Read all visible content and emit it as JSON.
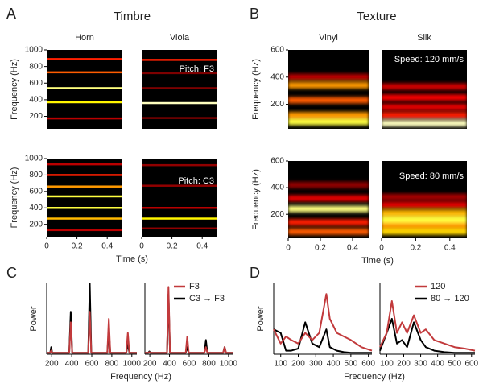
{
  "figure": {
    "panels": [
      "A",
      "B",
      "C",
      "D"
    ],
    "headings": [
      "Timbre",
      "Texture"
    ]
  },
  "chart_data": [
    {
      "type": "spectrogram",
      "title": "Horn",
      "ylabel": "Frequency (Hz)",
      "xlim": [
        0,
        0.5
      ],
      "ylim": [
        50,
        1000
      ],
      "yticks": [
        200,
        400,
        600,
        800,
        1000
      ],
      "bands": [
        175,
        370,
        540,
        730,
        890
      ],
      "intensities": [
        0.3,
        0.85,
        0.95,
        0.6,
        0.5
      ]
    },
    {
      "type": "spectrogram",
      "title": "Viola",
      "annotation": "Pitch: F3",
      "xlim": [
        0,
        0.5
      ],
      "ylim": [
        50,
        1000
      ],
      "bands": [
        180,
        360,
        540,
        720,
        880
      ],
      "intensities": [
        0.15,
        1.0,
        0.15,
        0.15,
        0.5
      ]
    },
    {
      "type": "spectrogram",
      "ylabel": "Frequency (Hz)",
      "xlabel": "Time (s)",
      "xlim": [
        0,
        0.5
      ],
      "ylim": [
        50,
        1000
      ],
      "xticks": [
        0,
        0.2,
        0.4
      ],
      "yticks": [
        200,
        400,
        600,
        800,
        1000
      ],
      "bands": [
        130,
        270,
        400,
        540,
        660,
        800,
        930
      ],
      "intensities": [
        0.3,
        0.75,
        0.9,
        0.9,
        0.7,
        0.5,
        0.3
      ]
    },
    {
      "type": "spectrogram",
      "annotation": "Pitch: C3",
      "xlim": [
        0,
        0.5
      ],
      "ylim": [
        50,
        1000
      ],
      "xticks": [
        0,
        0.2,
        0.4
      ],
      "bands": [
        150,
        270,
        400,
        670,
        920
      ],
      "intensities": [
        0.2,
        0.85,
        0.3,
        0.2,
        0.2
      ]
    },
    {
      "type": "spectrogram",
      "title": "Vinyl",
      "ylabel": "Frequency (Hz)",
      "xlim": [
        0,
        0.5
      ],
      "ylim": [
        20,
        600
      ],
      "yticks": [
        200,
        400,
        600
      ],
      "bands": [
        70,
        120,
        230,
        340,
        400
      ],
      "intensities": [
        0.9,
        0.7,
        0.6,
        0.7,
        0.3
      ]
    },
    {
      "type": "spectrogram",
      "title": "Silk",
      "annotation": "Speed: 120 mm/s",
      "xlim": [
        0,
        0.5
      ],
      "ylim": [
        20,
        600
      ],
      "bands": [
        60,
        120,
        180,
        250,
        330
      ],
      "intensities": [
        1.0,
        0.5,
        0.4,
        0.45,
        0.35
      ]
    },
    {
      "type": "spectrogram",
      "ylabel": "Frequency (Hz)",
      "xlabel": "Time (s)",
      "xlim": [
        0,
        0.5
      ],
      "ylim": [
        20,
        600
      ],
      "xticks": [
        0,
        0.2,
        0.4
      ],
      "yticks": [
        200,
        400,
        600
      ],
      "bands": [
        70,
        140,
        240,
        320,
        420
      ],
      "intensities": [
        0.6,
        0.5,
        0.95,
        0.4,
        0.2
      ]
    },
    {
      "type": "spectrogram",
      "annotation": "Speed: 80 mm/s",
      "xlim": [
        0,
        0.5
      ],
      "ylim": [
        20,
        600
      ],
      "xticks": [
        0,
        0.2,
        0.4
      ],
      "bands": [
        70,
        120,
        160,
        210,
        270,
        330
      ],
      "intensities": [
        0.8,
        0.7,
        0.9,
        0.75,
        0.4,
        0.25
      ]
    },
    {
      "type": "line",
      "ylabel": "Power",
      "xlabel": "Frequency (Hz)",
      "xlim": [
        150,
        1050
      ],
      "ylim": [
        0,
        1
      ],
      "xticks": [
        200,
        400,
        600,
        800,
        1000
      ],
      "x": [
        150,
        185,
        195,
        205,
        375,
        390,
        405,
        565,
        580,
        595,
        755,
        770,
        785,
        945,
        960,
        975,
        1050
      ],
      "series": [
        {
          "color": "#000000",
          "values": [
            0.02,
            0.02,
            0.1,
            0.02,
            0.02,
            0.6,
            0.02,
            0.02,
            1.0,
            0.02,
            0.02,
            0.35,
            0.02,
            0.02,
            0.15,
            0.02,
            0.02
          ]
        },
        {
          "color": "#c23a3c",
          "values": [
            0.02,
            0.02,
            0.05,
            0.02,
            0.02,
            0.45,
            0.02,
            0.02,
            0.6,
            0.02,
            0.02,
            0.5,
            0.02,
            0.02,
            0.3,
            0.02,
            0.02
          ]
        }
      ]
    },
    {
      "type": "line",
      "legend": "upper right",
      "xlim": [
        150,
        1050
      ],
      "ylim": [
        0,
        1
      ],
      "xticks": [
        200,
        400,
        600,
        800,
        1000
      ],
      "x": [
        150,
        185,
        195,
        205,
        375,
        390,
        405,
        565,
        580,
        595,
        755,
        770,
        785,
        945,
        960,
        975,
        1050
      ],
      "series": [
        {
          "name": "C3 → F3",
          "color": "#000000",
          "values": [
            0.02,
            0.02,
            0.04,
            0.02,
            0.02,
            0.85,
            0.02,
            0.02,
            0.1,
            0.02,
            0.02,
            0.2,
            0.02,
            0.02,
            0.1,
            0.02,
            0.02
          ]
        },
        {
          "name": "F3",
          "color": "#c23a3c",
          "values": [
            0.02,
            0.02,
            0.03,
            0.02,
            0.02,
            0.95,
            0.02,
            0.02,
            0.25,
            0.02,
            0.02,
            0.1,
            0.02,
            0.02,
            0.1,
            0.02,
            0.02
          ]
        }
      ]
    },
    {
      "type": "line",
      "ylabel": "Power",
      "xlabel": "Frequency (Hz)",
      "xlim": [
        60,
        620
      ],
      "ylim": [
        0,
        1
      ],
      "xticks": [
        100,
        200,
        300,
        400,
        500,
        600
      ],
      "x": [
        60,
        100,
        130,
        160,
        200,
        240,
        280,
        320,
        360,
        380,
        420,
        460,
        500,
        560,
        620
      ],
      "series": [
        {
          "color": "#000000",
          "values": [
            0.35,
            0.3,
            0.05,
            0.05,
            0.08,
            0.45,
            0.15,
            0.1,
            0.35,
            0.1,
            0.05,
            0.03,
            0.02,
            0.02,
            0.02
          ]
        },
        {
          "color": "#c23a3c",
          "values": [
            0.35,
            0.15,
            0.25,
            0.2,
            0.15,
            0.3,
            0.2,
            0.3,
            0.85,
            0.5,
            0.3,
            0.25,
            0.2,
            0.1,
            0.05
          ]
        }
      ]
    },
    {
      "type": "line",
      "legend": "upper right",
      "xlim": [
        60,
        620
      ],
      "ylim": [
        0,
        1
      ],
      "xticks": [
        100,
        200,
        300,
        400,
        500,
        600
      ],
      "x": [
        60,
        100,
        130,
        160,
        190,
        220,
        260,
        300,
        330,
        380,
        440,
        500,
        560,
        620
      ],
      "series": [
        {
          "name": "80 → 120",
          "color": "#000000",
          "values": [
            0.05,
            0.3,
            0.5,
            0.15,
            0.2,
            0.1,
            0.45,
            0.2,
            0.1,
            0.05,
            0.03,
            0.02,
            0.02,
            0.02
          ]
        },
        {
          "name": "120",
          "color": "#c23a3c",
          "values": [
            0.1,
            0.3,
            0.75,
            0.3,
            0.45,
            0.3,
            0.55,
            0.3,
            0.35,
            0.2,
            0.15,
            0.1,
            0.08,
            0.05
          ]
        }
      ]
    }
  ]
}
